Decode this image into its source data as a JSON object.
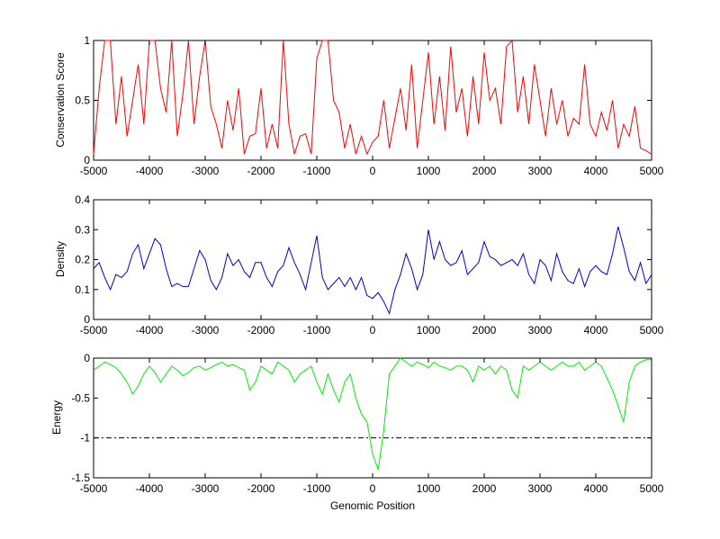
{
  "chart_data": [
    {
      "type": "line",
      "ylabel": "Conservation Score",
      "xlim": [
        -5000,
        5000
      ],
      "ylim": [
        0,
        1
      ],
      "xticks": [
        -5000,
        -4000,
        -3000,
        -2000,
        -1000,
        0,
        1000,
        2000,
        3000,
        4000,
        5000
      ],
      "yticks": [
        0,
        0.5,
        1
      ],
      "ytick_labels": [
        "0",
        "0.5",
        "1"
      ],
      "color": "#ff0000",
      "x": [
        -5000,
        -4900,
        -4800,
        -4700,
        -4600,
        -4500,
        -4400,
        -4300,
        -4200,
        -4100,
        -4000,
        -3900,
        -3800,
        -3700,
        -3600,
        -3500,
        -3400,
        -3300,
        -3200,
        -3100,
        -3000,
        -2900,
        -2800,
        -2700,
        -2600,
        -2500,
        -2400,
        -2300,
        -2200,
        -2100,
        -2000,
        -1900,
        -1800,
        -1700,
        -1600,
        -1500,
        -1400,
        -1300,
        -1200,
        -1100,
        -1000,
        -900,
        -800,
        -700,
        -600,
        -500,
        -400,
        -300,
        -200,
        -100,
        0,
        100,
        200,
        300,
        400,
        500,
        600,
        700,
        800,
        900,
        1000,
        1100,
        1200,
        1300,
        1400,
        1500,
        1600,
        1700,
        1800,
        1900,
        2000,
        2100,
        2200,
        2300,
        2400,
        2500,
        2600,
        2700,
        2800,
        2900,
        3000,
        3100,
        3200,
        3300,
        3400,
        3500,
        3600,
        3700,
        3800,
        3900,
        4000,
        4100,
        4200,
        4300,
        4400,
        4500,
        4600,
        4700,
        4800,
        4900,
        5000
      ],
      "y": [
        0.05,
        0.6,
        1.0,
        1.0,
        0.3,
        0.7,
        0.2,
        0.5,
        0.8,
        0.3,
        1.0,
        1.0,
        0.6,
        0.4,
        1.0,
        0.2,
        0.55,
        1.0,
        0.3,
        0.7,
        1.0,
        0.45,
        0.3,
        0.1,
        0.5,
        0.25,
        0.6,
        0.05,
        0.2,
        0.22,
        0.6,
        0.1,
        0.3,
        0.1,
        1.0,
        0.3,
        0.05,
        0.2,
        0.22,
        0.05,
        0.85,
        1.0,
        1.0,
        0.5,
        0.4,
        0.1,
        0.3,
        0.05,
        0.2,
        0.05,
        0.15,
        0.2,
        0.5,
        0.1,
        0.35,
        0.6,
        0.25,
        0.8,
        0.1,
        0.5,
        0.9,
        0.3,
        0.7,
        0.25,
        0.95,
        0.4,
        0.6,
        0.2,
        0.7,
        0.3,
        0.9,
        0.5,
        0.6,
        0.3,
        0.95,
        1.0,
        0.4,
        0.7,
        0.3,
        0.8,
        0.5,
        0.2,
        0.6,
        0.3,
        0.5,
        0.2,
        0.35,
        0.3,
        0.8,
        0.3,
        0.2,
        0.4,
        0.25,
        0.5,
        0.1,
        0.3,
        0.2,
        0.45,
        0.1,
        0.08,
        0.05
      ]
    },
    {
      "type": "line",
      "ylabel": "Density",
      "xlim": [
        -5000,
        5000
      ],
      "ylim": [
        0,
        0.4
      ],
      "xticks": [
        -5000,
        -4000,
        -3000,
        -2000,
        -1000,
        0,
        1000,
        2000,
        3000,
        4000,
        5000
      ],
      "yticks": [
        0,
        0.1,
        0.2,
        0.3,
        0.4
      ],
      "ytick_labels": [
        "0",
        "0.1",
        "0.2",
        "0.3",
        "0.4"
      ],
      "color": "#0000cc",
      "x": [
        -5000,
        -4900,
        -4800,
        -4700,
        -4600,
        -4500,
        -4400,
        -4300,
        -4200,
        -4100,
        -4000,
        -3900,
        -3800,
        -3700,
        -3600,
        -3500,
        -3400,
        -3300,
        -3200,
        -3100,
        -3000,
        -2900,
        -2800,
        -2700,
        -2600,
        -2500,
        -2400,
        -2300,
        -2200,
        -2100,
        -2000,
        -1900,
        -1800,
        -1700,
        -1600,
        -1500,
        -1400,
        -1300,
        -1200,
        -1100,
        -1000,
        -900,
        -800,
        -700,
        -600,
        -500,
        -400,
        -300,
        -200,
        -100,
        0,
        100,
        200,
        300,
        400,
        500,
        600,
        700,
        800,
        900,
        1000,
        1100,
        1200,
        1300,
        1400,
        1500,
        1600,
        1700,
        1800,
        1900,
        2000,
        2100,
        2200,
        2300,
        2400,
        2500,
        2600,
        2700,
        2800,
        2900,
        3000,
        3100,
        3200,
        3300,
        3400,
        3500,
        3600,
        3700,
        3800,
        3900,
        4000,
        4100,
        4200,
        4300,
        4400,
        4500,
        4600,
        4700,
        4800,
        4900,
        5000
      ],
      "y": [
        0.17,
        0.19,
        0.14,
        0.1,
        0.15,
        0.14,
        0.16,
        0.22,
        0.25,
        0.17,
        0.22,
        0.27,
        0.25,
        0.17,
        0.11,
        0.12,
        0.11,
        0.11,
        0.17,
        0.23,
        0.2,
        0.13,
        0.1,
        0.14,
        0.22,
        0.18,
        0.2,
        0.16,
        0.14,
        0.19,
        0.19,
        0.14,
        0.11,
        0.16,
        0.18,
        0.24,
        0.19,
        0.15,
        0.1,
        0.19,
        0.28,
        0.14,
        0.1,
        0.12,
        0.14,
        0.11,
        0.14,
        0.1,
        0.14,
        0.08,
        0.07,
        0.09,
        0.06,
        0.02,
        0.1,
        0.15,
        0.22,
        0.17,
        0.1,
        0.15,
        0.3,
        0.2,
        0.26,
        0.2,
        0.18,
        0.19,
        0.23,
        0.15,
        0.17,
        0.19,
        0.26,
        0.21,
        0.2,
        0.18,
        0.19,
        0.2,
        0.18,
        0.22,
        0.15,
        0.12,
        0.2,
        0.18,
        0.13,
        0.22,
        0.16,
        0.13,
        0.12,
        0.17,
        0.11,
        0.16,
        0.18,
        0.16,
        0.15,
        0.22,
        0.31,
        0.24,
        0.16,
        0.13,
        0.19,
        0.12,
        0.15
      ]
    },
    {
      "type": "line",
      "ylabel": "Energy",
      "xlabel": "Genomic Position",
      "xlim": [
        -5000,
        5000
      ],
      "ylim": [
        -1.5,
        0
      ],
      "xticks": [
        -5000,
        -4000,
        -3000,
        -2000,
        -1000,
        0,
        1000,
        2000,
        3000,
        4000,
        5000
      ],
      "yticks": [
        -1.5,
        -1,
        -0.5,
        0
      ],
      "ytick_labels": [
        "-1.5",
        "-1",
        "-0.5",
        "0"
      ],
      "color": "#00ee00",
      "threshold": -1,
      "x": [
        -5000,
        -4900,
        -4800,
        -4700,
        -4600,
        -4500,
        -4400,
        -4300,
        -4200,
        -4100,
        -4000,
        -3900,
        -3800,
        -3700,
        -3600,
        -3500,
        -3400,
        -3300,
        -3200,
        -3100,
        -3000,
        -2900,
        -2800,
        -2700,
        -2600,
        -2500,
        -2400,
        -2300,
        -2200,
        -2100,
        -2000,
        -1900,
        -1800,
        -1700,
        -1600,
        -1500,
        -1400,
        -1300,
        -1200,
        -1100,
        -1000,
        -900,
        -800,
        -700,
        -600,
        -500,
        -400,
        -300,
        -200,
        -100,
        0,
        100,
        200,
        300,
        400,
        500,
        600,
        700,
        800,
        900,
        1000,
        1100,
        1200,
        1300,
        1400,
        1500,
        1600,
        1700,
        1800,
        1900,
        2000,
        2100,
        2200,
        2300,
        2400,
        2500,
        2600,
        2700,
        2800,
        2900,
        3000,
        3100,
        3200,
        3300,
        3400,
        3500,
        3600,
        3700,
        3800,
        3900,
        4000,
        4100,
        4200,
        4300,
        4400,
        4500,
        4600,
        4700,
        4800,
        4900,
        5000
      ],
      "y": [
        -0.15,
        -0.1,
        -0.05,
        -0.08,
        -0.12,
        -0.2,
        -0.3,
        -0.45,
        -0.35,
        -0.2,
        -0.1,
        -0.18,
        -0.3,
        -0.2,
        -0.1,
        -0.15,
        -0.22,
        -0.18,
        -0.12,
        -0.1,
        -0.15,
        -0.12,
        -0.08,
        -0.05,
        -0.1,
        -0.08,
        -0.12,
        -0.15,
        -0.4,
        -0.3,
        -0.1,
        -0.15,
        -0.2,
        -0.05,
        -0.1,
        -0.15,
        -0.3,
        -0.2,
        -0.15,
        -0.1,
        -0.3,
        -0.45,
        -0.2,
        -0.4,
        -0.55,
        -0.3,
        -0.2,
        -0.5,
        -0.7,
        -0.8,
        -1.2,
        -1.4,
        -0.9,
        -0.2,
        -0.1,
        0.0,
        -0.05,
        -0.1,
        -0.05,
        -0.08,
        -0.12,
        -0.05,
        -0.1,
        -0.12,
        -0.15,
        -0.1,
        -0.1,
        -0.15,
        -0.3,
        -0.1,
        -0.15,
        -0.1,
        -0.2,
        -0.1,
        -0.15,
        -0.4,
        -0.5,
        -0.1,
        -0.15,
        -0.1,
        -0.05,
        -0.1,
        -0.15,
        -0.1,
        -0.05,
        -0.1,
        -0.1,
        -0.05,
        -0.15,
        -0.1,
        -0.05,
        -0.1,
        -0.25,
        -0.4,
        -0.6,
        -0.8,
        -0.3,
        -0.1,
        -0.05,
        -0.02,
        -0.02
      ]
    }
  ]
}
